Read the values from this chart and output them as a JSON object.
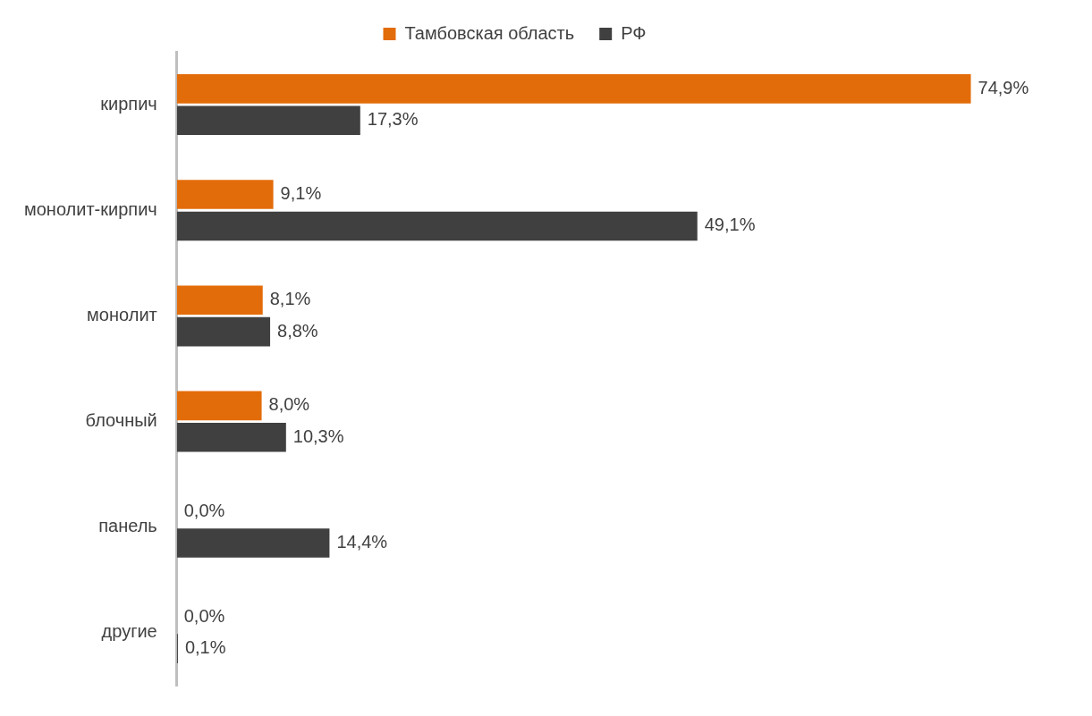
{
  "chart_data": {
    "type": "bar",
    "orientation": "horizontal",
    "categories": [
      "кирпич",
      "монолит-кирпич",
      "монолит",
      "блочный",
      "панель",
      "другие"
    ],
    "series": [
      {
        "name": "Тамбовская область",
        "color": "#e36c0a",
        "values": [
          74.9,
          9.1,
          8.1,
          8.0,
          0.0,
          0.0
        ],
        "value_labels": [
          "74,9%",
          "9,1%",
          "8,1%",
          "8,0%",
          "0,0%",
          "0,0%"
        ]
      },
      {
        "name": "РФ",
        "color": "#404040",
        "values": [
          17.3,
          49.1,
          8.8,
          10.3,
          14.4,
          0.1
        ],
        "value_labels": [
          "17,3%",
          "49,1%",
          "8,8%",
          "10,3%",
          "14,4%",
          "0,1%"
        ]
      }
    ],
    "tick_labels": "y",
    "grid": false,
    "legend": "top"
  }
}
